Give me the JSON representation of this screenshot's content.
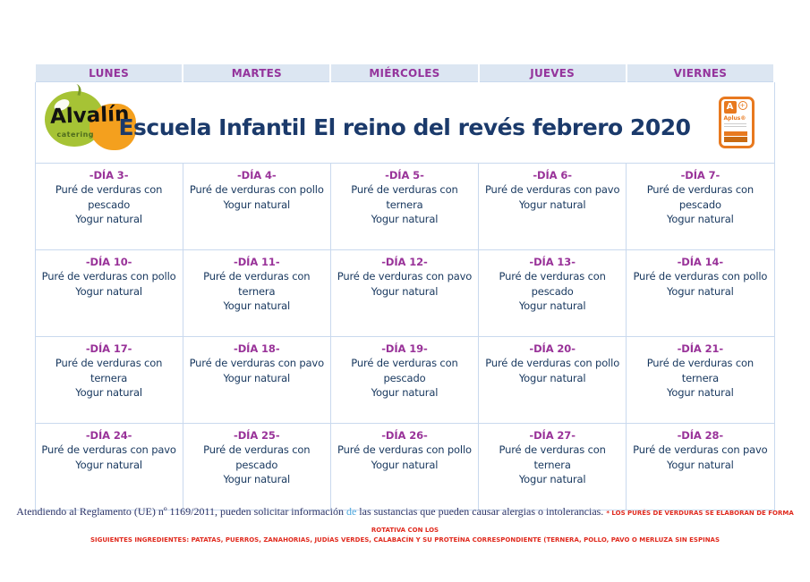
{
  "header": {
    "days": [
      "LUNES",
      "MARTES",
      "MIÉRCOLES",
      "JUEVES",
      "VIERNES"
    ]
  },
  "title": "Escuela Infantil El reino del revés febrero 2020",
  "logo": {
    "name": "Alvalín",
    "tagline": "catering",
    "apple_color": "#a6c335",
    "blob_color": "#f4a01e"
  },
  "badge": {
    "letter": "A",
    "plus": "+",
    "label": "Aplus®",
    "accent_color": "#e8791f"
  },
  "menu": {
    "rows": [
      {
        "cells": [
          {
            "day": "-DÍA 3-",
            "meal": "Puré de verduras con pescado",
            "dessert": "Yogur natural"
          },
          {
            "day": "-DÍA 4-",
            "meal": "Puré de verduras con pollo",
            "dessert": "Yogur natural"
          },
          {
            "day": "-DÍA 5-",
            "meal": "Puré de verduras con ternera",
            "dessert": "Yogur natural"
          },
          {
            "day": "-DÍA 6-",
            "meal": "Puré de verduras con pavo",
            "dessert": "Yogur natural"
          },
          {
            "day": "-DÍA 7-",
            "meal": "Puré de verduras con pescado",
            "dessert": "Yogur natural"
          }
        ]
      },
      {
        "cells": [
          {
            "day": "-DÍA 10-",
            "meal": "Puré de verduras con pollo",
            "dessert": "Yogur natural"
          },
          {
            "day": "-DÍA 11-",
            "meal": "Puré de verduras con ternera",
            "dessert": "Yogur natural"
          },
          {
            "day": "-DÍA 12-",
            "meal": "Puré de verduras con pavo",
            "dessert": "Yogur natural"
          },
          {
            "day": "-DÍA 13-",
            "meal": "Puré de verduras con pescado",
            "dessert": "Yogur natural"
          },
          {
            "day": "-DÍA 14-",
            "meal": "Puré de verduras con pollo",
            "dessert": "Yogur natural"
          }
        ]
      },
      {
        "cells": [
          {
            "day": "-DÍA 17-",
            "meal": "Puré de verduras con ternera",
            "dessert": "Yogur natural"
          },
          {
            "day": "-DÍA 18-",
            "meal": "Puré de verduras con pavo",
            "dessert": "Yogur natural"
          },
          {
            "day": "-DÍA 19-",
            "meal": "Puré de verduras con pescado",
            "dessert": "Yogur natural"
          },
          {
            "day": "-DÍA 20-",
            "meal": "Puré de verduras con pollo",
            "dessert": "Yogur natural"
          },
          {
            "day": "-DÍA 21-",
            "meal": "Puré de verduras con ternera",
            "dessert": "Yogur natural"
          }
        ]
      },
      {
        "cells": [
          {
            "day": "-DÍA 24-",
            "meal": "Puré de verduras con pavo",
            "dessert": "Yogur natural"
          },
          {
            "day": "-DÍA 25-",
            "meal": "Puré de verduras con pescado",
            "dessert": "Yogur natural"
          },
          {
            "day": "-DÍA 26-",
            "meal": "Puré de verduras con pollo",
            "dessert": "Yogur natural"
          },
          {
            "day": "-DÍA 27-",
            "meal": "Puré de verduras con ternera",
            "dessert": "Yogur natural"
          },
          {
            "day": "-DÍA 28-",
            "meal": "Puré de verduras con pavo",
            "dessert": "Yogur natural"
          }
        ]
      }
    ]
  },
  "footer": {
    "regulation_pre": "Atendiendo al Reglamento (UE) nº 1169/2011, pueden solicitar información ",
    "regulation_highlight": "de",
    "regulation_post": " las sustancias que pueden causar alergias o intolerancias. ",
    "note_line1": "* LOS PURÉS DE VERDURAS SE ELABORAN DE FORMA ROTATIVA CON LOS",
    "note_line2": "SIGUIENTES INGREDIENTES: PATATAS, PUERROS, ZANAHORIAS, JUDÍAS VERDES, CALABACÍN Y SU PROTEÍNA CORRESPONDIENTE (TERNERA, POLLO, PAVO O MERLUZA SIN ESPINAS"
  },
  "colors": {
    "header_bg": "#dce6f2",
    "header_text": "#94349c",
    "day_label": "#993399",
    "meal_text": "#17375e",
    "title_text": "#1b3a6b",
    "grid_border": "#c9d9ee",
    "note_red": "#e02a1e",
    "highlight_blue": "#4ba6dd"
  }
}
